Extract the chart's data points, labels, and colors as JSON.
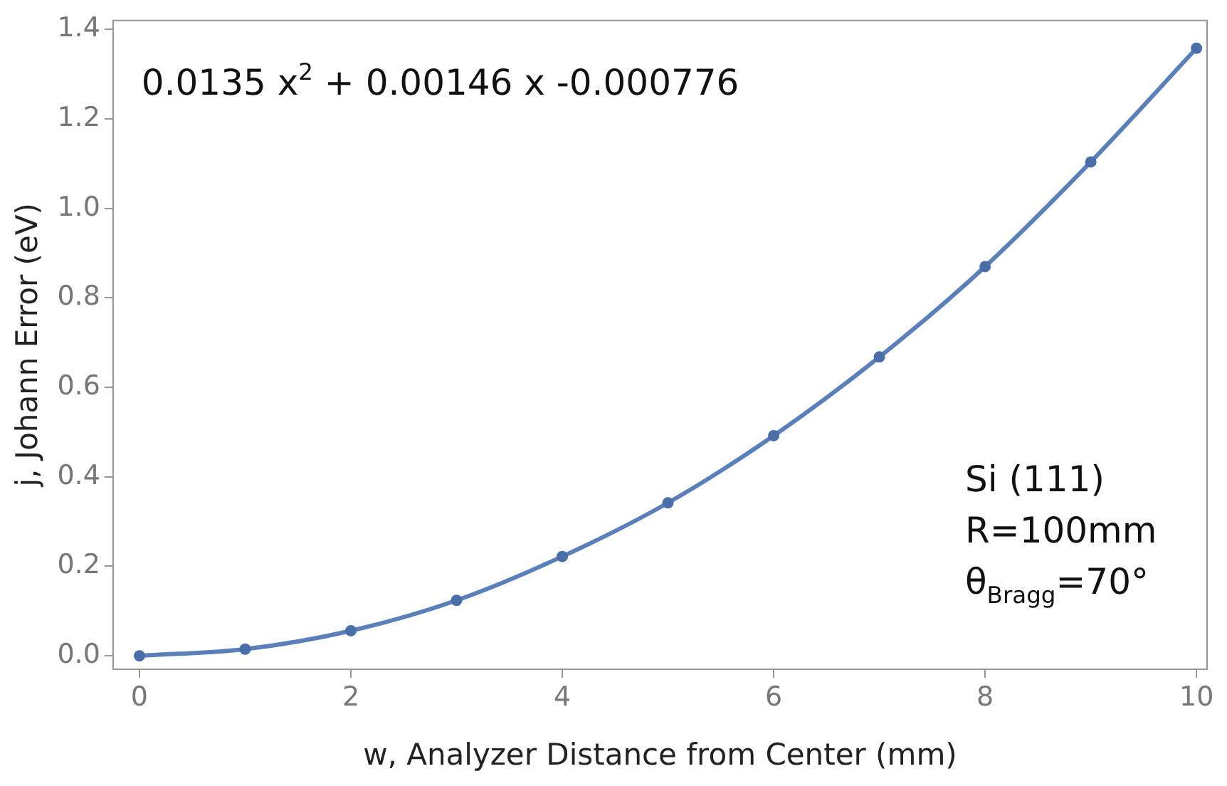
{
  "chart_data": {
    "type": "scatter",
    "xlabel": "w, Analyzer Distance from Center (mm)",
    "ylabel": "j, Johann Error (eV)",
    "x": [
      0,
      1,
      2,
      3,
      4,
      5,
      6,
      7,
      8,
      9,
      10
    ],
    "series": [
      {
        "type": "line",
        "marker": "none",
        "color": "#5b80b9",
        "x": [
          0,
          1,
          2,
          3,
          4,
          5,
          6,
          7,
          8,
          9,
          10
        ],
        "values": [
          0,
          0.015,
          0.056,
          0.124,
          0.222,
          0.342,
          0.492,
          0.668,
          0.87,
          1.104,
          1.358
        ]
      },
      {
        "color": "#4a6fa8",
        "values": [
          0,
          0.015,
          0.056,
          0.124,
          0.222,
          0.342,
          0.492,
          0.668,
          0.87,
          1.104,
          1.358
        ]
      }
    ],
    "xlim": [
      -0.25,
      10.1
    ],
    "xticks": [
      0,
      2,
      4,
      6,
      8,
      10
    ],
    "ylim": [
      -0.03,
      1.42
    ],
    "yticks": [
      {
        "value": 0,
        "label": "0.0"
      },
      {
        "value": 0.2,
        "label": "0.2"
      },
      {
        "value": 0.4,
        "label": "0.4"
      },
      {
        "value": 0.6,
        "label": "0.6"
      },
      {
        "value": 0.8,
        "label": "0.8"
      },
      {
        "value": 1.0,
        "label": "1.0"
      },
      {
        "value": 1.2,
        "label": "1.2"
      },
      {
        "value": 1.4,
        "label": "1.4"
      }
    ],
    "marker": "circle",
    "grid": false,
    "legend": false,
    "annotations": [
      "0.0135 x$^{2}$ + 0.00146 x -0.000776",
      "Si (111)",
      "R=100mm",
      "θ$_{Bragg}$=70°"
    ]
  }
}
